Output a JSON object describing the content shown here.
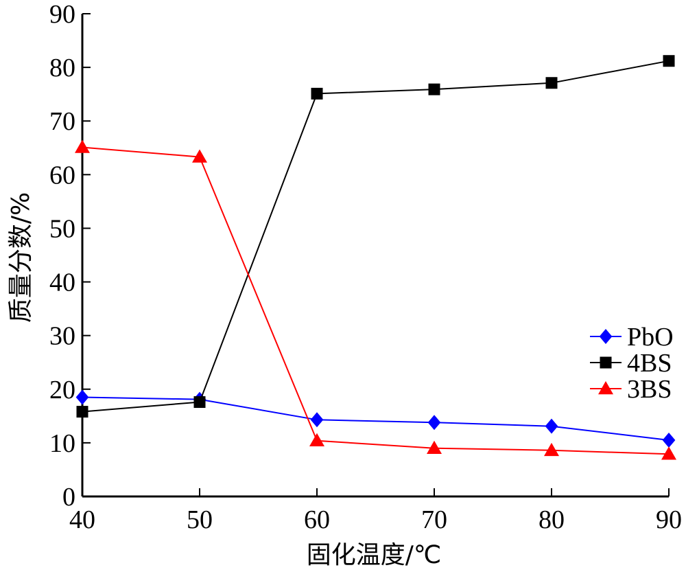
{
  "chart_data": {
    "type": "line",
    "xlabel": "固化温度/℃",
    "ylabel": "质量分数/%",
    "x": [
      40,
      50,
      60,
      70,
      80,
      90
    ],
    "xlim": [
      40,
      90
    ],
    "ylim": [
      0,
      90
    ],
    "x_ticks": [
      "40",
      "50",
      "60",
      "70",
      "80",
      "90"
    ],
    "y_ticks": [
      "0",
      "10",
      "20",
      "30",
      "40",
      "50",
      "60",
      "70",
      "80",
      "90"
    ],
    "grid": false,
    "legend_position": "right",
    "series": [
      {
        "name": "PbO",
        "values": [
          18.5,
          18.1,
          14.3,
          13.8,
          13.1,
          10.5
        ],
        "color": "#0000ff",
        "marker": "diamond"
      },
      {
        "name": "4BS",
        "values": [
          15.8,
          17.6,
          75.1,
          75.9,
          77.1,
          81.2
        ],
        "color": "#000000",
        "marker": "square"
      },
      {
        "name": "3BS",
        "values": [
          65.1,
          63.3,
          10.4,
          9.0,
          8.6,
          7.9
        ],
        "color": "#ff0000",
        "marker": "triangle"
      }
    ]
  }
}
